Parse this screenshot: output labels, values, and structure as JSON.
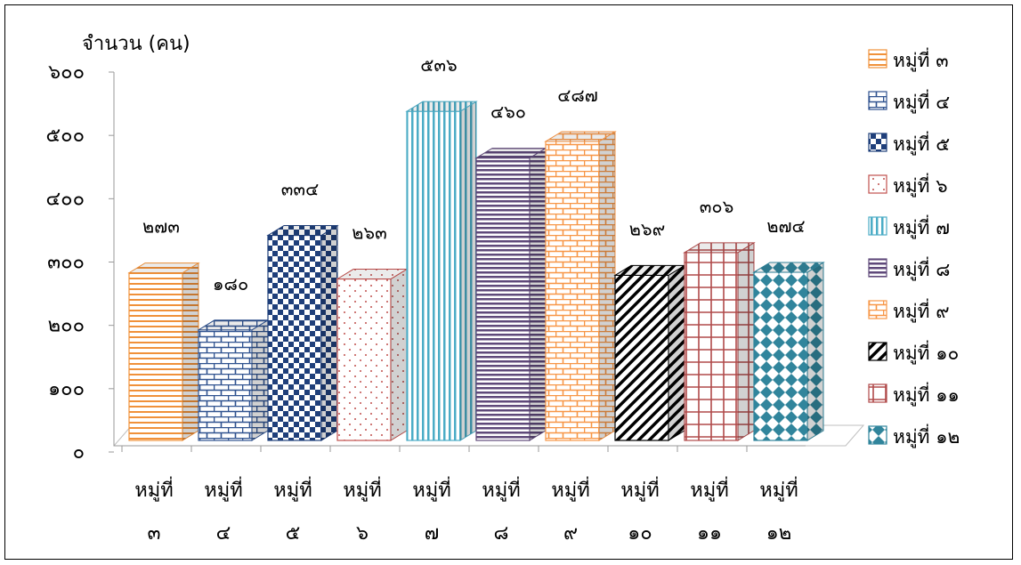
{
  "chart_data": {
    "type": "bar",
    "style": "3d-column",
    "ylabel": "จำนวน (คน)",
    "ylim": [
      0,
      600
    ],
    "yticks": [
      0,
      100,
      200,
      300,
      400,
      500,
      600
    ],
    "ytick_labels": [
      "๐",
      "๑๐๐",
      "๒๐๐",
      "๓๐๐",
      "๔๐๐",
      "๕๐๐",
      "๖๐๐"
    ],
    "grid": false,
    "legend_position": "right",
    "categories": [
      [
        "หมู่ที่",
        "๓"
      ],
      [
        "หมู่ที่",
        "๔"
      ],
      [
        "หมู่ที่",
        "๕"
      ],
      [
        "หมู่ที่",
        "๖"
      ],
      [
        "หมู่ที่",
        "๗"
      ],
      [
        "หมู่ที่",
        "๘"
      ],
      [
        "หมู่ที่",
        "๙"
      ],
      [
        "หมู่ที่",
        "๑๐"
      ],
      [
        "หมู่ที่",
        "๑๑"
      ],
      [
        "หมู่ที่",
        "๑๒"
      ]
    ],
    "series": [
      {
        "name": "หมู่ที่ ๓",
        "value": 273,
        "label": "๒๗๓",
        "color": "#F0913A",
        "pattern": "hlines"
      },
      {
        "name": "หมู่ที่ ๔",
        "value": 180,
        "label": "๑๘๐",
        "color": "#2F528F",
        "pattern": "bricks"
      },
      {
        "name": "หมู่ที่ ๕",
        "value": 334,
        "label": "๓๓๔",
        "color": "#1F3F7A",
        "pattern": "checker"
      },
      {
        "name": "หมู่ที่ ๖",
        "value": 263,
        "label": "๒๖๓",
        "color": "#C0504D",
        "pattern": "dots"
      },
      {
        "name": "หมู่ที่ ๗",
        "value": 536,
        "label": "๕๓๖",
        "color": "#4BACC6",
        "pattern": "vlines"
      },
      {
        "name": "หมู่ที่ ๘",
        "value": 460,
        "label": "๔๖๐",
        "color": "#5F497A",
        "pattern": "hlines-dense"
      },
      {
        "name": "หมู่ที่ ๙",
        "value": 487,
        "label": "๔๘๗",
        "color": "#F79646",
        "pattern": "bricks"
      },
      {
        "name": "หมู่ที่ ๑๐",
        "value": 269,
        "label": "๒๖๙",
        "color": "#000000",
        "pattern": "diagonal"
      },
      {
        "name": "หมู่ที่ ๑๑",
        "value": 306,
        "label": "๓๐๖",
        "color": "#B04A4A",
        "pattern": "grid"
      },
      {
        "name": "หมู่ที่ ๑๒",
        "value": 274,
        "label": "๒๗๔",
        "color": "#31859C",
        "pattern": "diamonds"
      }
    ]
  }
}
